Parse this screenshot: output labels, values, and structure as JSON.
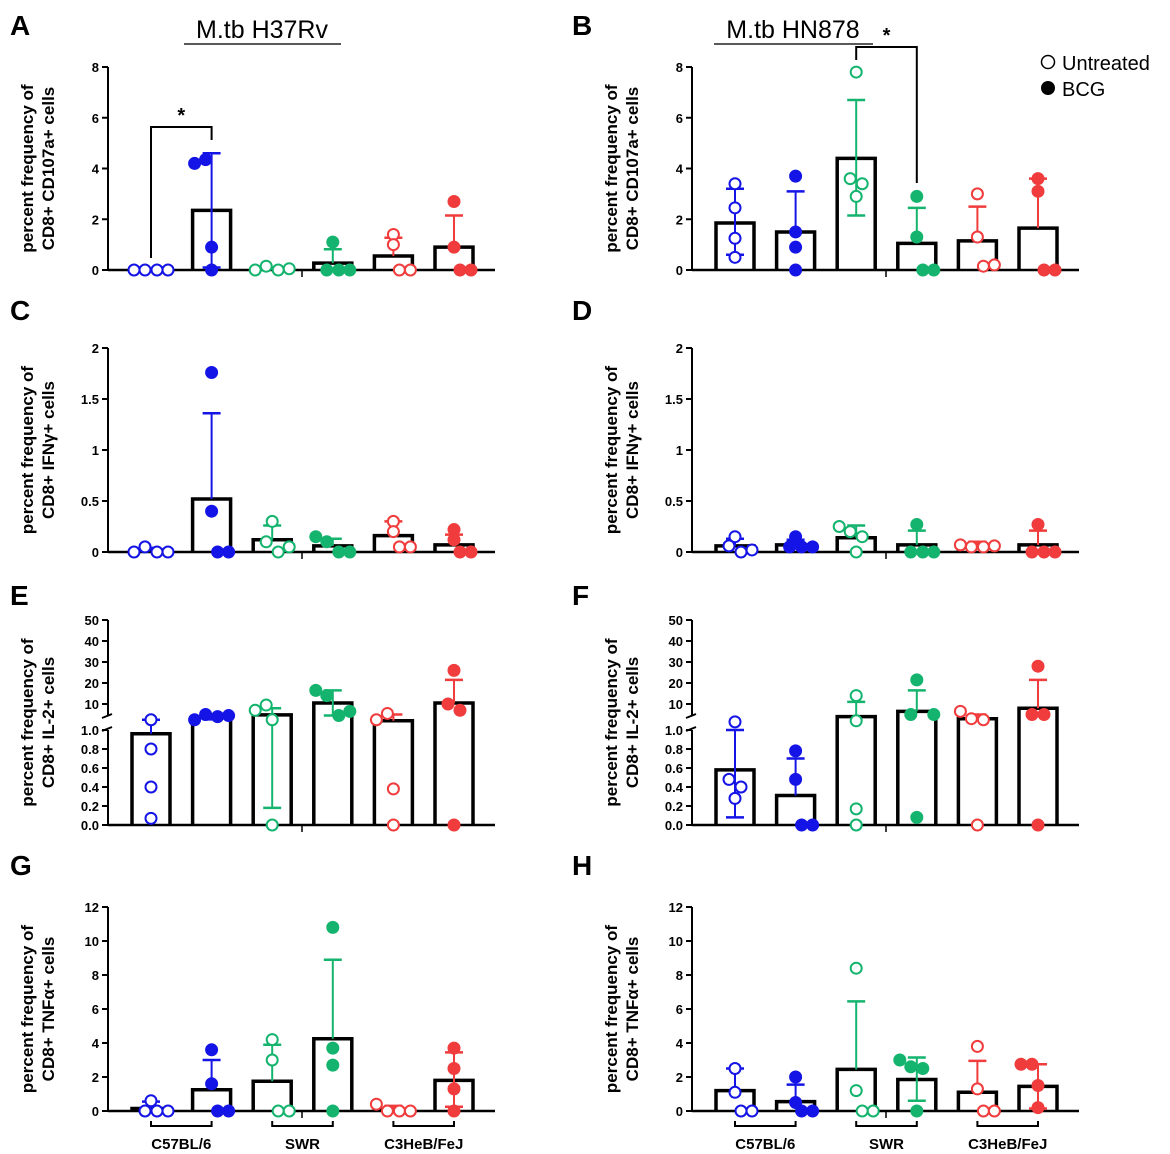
{
  "colors": {
    "C57BL/6": "#1414e6",
    "SWR": "#14b46e",
    "C3HeB/FeJ": "#f03c3c"
  },
  "titles": {
    "left": "M.tb H37Rv",
    "right": "M.tb HN878"
  },
  "legend": {
    "untreated": "Untreated",
    "bcg": "BCG"
  },
  "strains": [
    "C57BL/6",
    "SWR",
    "C3HeB/FeJ"
  ],
  "chart_data": [
    {
      "panel": "A",
      "type": "bar",
      "ylabel": [
        "percent frequency of",
        "CD8+ CD107a+ cells"
      ],
      "ylim": [
        0,
        8
      ],
      "ticks": [
        0,
        2,
        4,
        6,
        8
      ],
      "significance": {
        "groups": [
          0,
          1
        ],
        "label": "*"
      },
      "groups": [
        {
          "strain": "C57BL/6",
          "treatment": "Untreated",
          "mean": 0,
          "lo": 0,
          "hi": 0,
          "points": [
            0,
            0,
            0,
            0
          ]
        },
        {
          "strain": "C57BL/6",
          "treatment": "BCG",
          "mean": 2.35,
          "lo": 0.1,
          "hi": 4.6,
          "points": [
            4.2,
            4.35,
            0.9,
            0
          ]
        },
        {
          "strain": "SWR",
          "treatment": "Untreated",
          "mean": 0.05,
          "lo": null,
          "hi": 0.1,
          "points": [
            0,
            0.15,
            0,
            0.05
          ]
        },
        {
          "strain": "SWR",
          "treatment": "BCG",
          "mean": 0.27,
          "lo": null,
          "hi": 0.82,
          "points": [
            1.1,
            0,
            0,
            0
          ]
        },
        {
          "strain": "C3HeB/FeJ",
          "treatment": "Untreated",
          "mean": 0.55,
          "lo": null,
          "hi": 1.27,
          "points": [
            1.4,
            1.0,
            0,
            0
          ]
        },
        {
          "strain": "C3HeB/FeJ",
          "treatment": "BCG",
          "mean": 0.9,
          "lo": null,
          "hi": 2.15,
          "points": [
            2.7,
            0.9,
            0,
            0
          ]
        }
      ]
    },
    {
      "panel": "B",
      "type": "bar",
      "ylabel": [
        "percent frequency of",
        "CD8+ CD107a+ cells"
      ],
      "ylim": [
        0,
        8
      ],
      "ticks": [
        0,
        2,
        4,
        6,
        8
      ],
      "significance": {
        "groups": [
          2,
          3
        ],
        "label": "*"
      },
      "groups": [
        {
          "strain": "C57BL/6",
          "treatment": "Untreated",
          "mean": 1.85,
          "lo": 0.6,
          "hi": 3.2,
          "points": [
            3.4,
            2.45,
            1.25,
            0.5
          ]
        },
        {
          "strain": "C57BL/6",
          "treatment": "BCG",
          "mean": 1.5,
          "lo": null,
          "hi": 3.1,
          "points": [
            3.7,
            1.5,
            0.9,
            0
          ]
        },
        {
          "strain": "SWR",
          "treatment": "Untreated",
          "mean": 4.4,
          "lo": 2.15,
          "hi": 6.7,
          "points": [
            7.8,
            3.6,
            3.4,
            2.9
          ]
        },
        {
          "strain": "SWR",
          "treatment": "BCG",
          "mean": 1.05,
          "lo": null,
          "hi": 2.45,
          "points": [
            2.9,
            1.3,
            0,
            0
          ]
        },
        {
          "strain": "C3HeB/FeJ",
          "treatment": "Untreated",
          "mean": 1.15,
          "lo": null,
          "hi": 2.5,
          "points": [
            3.0,
            1.3,
            0.15,
            0.2
          ]
        },
        {
          "strain": "C3HeB/FeJ",
          "treatment": "BCG",
          "mean": 1.65,
          "lo": null,
          "hi": 3.6,
          "points": [
            3.6,
            3.1,
            0,
            0
          ]
        }
      ]
    },
    {
      "panel": "C",
      "type": "bar",
      "ylabel": [
        "percent frequency of",
        "CD8+ IFNγ+ cells"
      ],
      "ylim": [
        0,
        2
      ],
      "ticks": [
        0,
        0.5,
        1,
        1.5,
        2
      ],
      "groups": [
        {
          "strain": "C57BL/6",
          "treatment": "Untreated",
          "mean": 0.02,
          "lo": null,
          "hi": 0.04,
          "points": [
            0,
            0.05,
            0,
            0
          ]
        },
        {
          "strain": "C57BL/6",
          "treatment": "BCG",
          "mean": 0.52,
          "lo": null,
          "hi": 1.36,
          "points": [
            1.76,
            0.4,
            0,
            0
          ]
        },
        {
          "strain": "SWR",
          "treatment": "Untreated",
          "mean": 0.12,
          "lo": null,
          "hi": 0.26,
          "points": [
            0.3,
            0.1,
            0,
            0.05
          ]
        },
        {
          "strain": "SWR",
          "treatment": "BCG",
          "mean": 0.06,
          "lo": null,
          "hi": 0.13,
          "points": [
            0.15,
            0.1,
            0,
            0
          ]
        },
        {
          "strain": "C3HeB/FeJ",
          "treatment": "Untreated",
          "mean": 0.16,
          "lo": null,
          "hi": 0.3,
          "points": [
            0.3,
            0.2,
            0.05,
            0.05
          ]
        },
        {
          "strain": "C3HeB/FeJ",
          "treatment": "BCG",
          "mean": 0.07,
          "lo": null,
          "hi": 0.17,
          "points": [
            0.22,
            0.12,
            0,
            0
          ]
        }
      ]
    },
    {
      "panel": "D",
      "type": "bar",
      "ylabel": [
        "percent frequency of",
        "CD8+ IFNγ+ cells"
      ],
      "ylim": [
        0,
        2
      ],
      "ticks": [
        0,
        0.5,
        1,
        1.5,
        2
      ],
      "groups": [
        {
          "strain": "C57BL/6",
          "treatment": "Untreated",
          "mean": 0.06,
          "lo": null,
          "hi": 0.13,
          "points": [
            0.15,
            0.06,
            0,
            0.02
          ]
        },
        {
          "strain": "C57BL/6",
          "treatment": "BCG",
          "mean": 0.07,
          "lo": null,
          "hi": 0.12,
          "points": [
            0.15,
            0.05,
            0.05,
            0.05
          ]
        },
        {
          "strain": "SWR",
          "treatment": "Untreated",
          "mean": 0.14,
          "lo": null,
          "hi": 0.26,
          "points": [
            0.25,
            0.2,
            0.15,
            0
          ]
        },
        {
          "strain": "SWR",
          "treatment": "BCG",
          "mean": 0.07,
          "lo": null,
          "hi": 0.21,
          "points": [
            0.27,
            0,
            0,
            0
          ]
        },
        {
          "strain": "C3HeB/FeJ",
          "treatment": "Untreated",
          "mean": 0.06,
          "lo": null,
          "hi": 0.1,
          "points": [
            0.07,
            0.05,
            0.05,
            0.06
          ]
        },
        {
          "strain": "C3HeB/FeJ",
          "treatment": "BCG",
          "mean": 0.07,
          "lo": null,
          "hi": 0.21,
          "points": [
            0.27,
            0,
            0,
            0
          ]
        }
      ]
    },
    {
      "panel": "E",
      "type": "bar",
      "broken_axis": true,
      "ylabel": [
        "percent frequency of",
        "CD8+ IL-2+ cells"
      ],
      "ticks_low": [
        0,
        0.2,
        0.4,
        0.6,
        0.8,
        1
      ],
      "ticks_high": [
        10,
        20,
        30,
        40,
        50
      ],
      "groups": [
        {
          "strain": "C57BL/6",
          "treatment": "Untreated",
          "mean": 0.96,
          "lo": null,
          "hi": 2.5,
          "points": [
            2.5,
            0.8,
            0.4,
            0.07
          ]
        },
        {
          "strain": "C57BL/6",
          "treatment": "BCG",
          "mean": 3.5,
          "lo": 2.7,
          "hi": 4.3,
          "points": [
            2.5,
            5,
            4,
            4.5
          ]
        },
        {
          "strain": "SWR",
          "treatment": "Untreated",
          "mean": 4.8,
          "lo": 0.18,
          "hi": 8,
          "points": [
            7,
            9.5,
            2.5,
            0
          ]
        },
        {
          "strain": "SWR",
          "treatment": "BCG",
          "mean": 10.5,
          "lo": 4.5,
          "hi": 16.5,
          "points": [
            16.5,
            14,
            4.5,
            6.5
          ]
        },
        {
          "strain": "C3HeB/FeJ",
          "treatment": "Untreated",
          "mean": 2,
          "lo": null,
          "hi": 5,
          "points": [
            2.5,
            5.5,
            0.38,
            0
          ]
        },
        {
          "strain": "C3HeB/FeJ",
          "treatment": "BCG",
          "mean": 10.5,
          "lo": null,
          "hi": 21.5,
          "points": [
            26,
            10,
            7,
            0
          ]
        }
      ]
    },
    {
      "panel": "F",
      "type": "bar",
      "broken_axis": true,
      "ylabel": [
        "percent frequency of",
        "CD8+ IL-2+ cells"
      ],
      "ticks_low": [
        0,
        0.2,
        0.4,
        0.6,
        0.8,
        1
      ],
      "ticks_high": [
        10,
        20,
        30,
        40,
        50
      ],
      "groups": [
        {
          "strain": "C57BL/6",
          "treatment": "Untreated",
          "mean": 0.58,
          "lo": 0.08,
          "hi": 1.0,
          "points": [
            1.5,
            0.48,
            0.4,
            0.28
          ]
        },
        {
          "strain": "C57BL/6",
          "treatment": "BCG",
          "mean": 0.31,
          "lo": null,
          "hi": 0.7,
          "points": [
            0.78,
            0.48,
            0,
            0
          ]
        },
        {
          "strain": "SWR",
          "treatment": "Untreated",
          "mean": 4,
          "lo": null,
          "hi": 11,
          "points": [
            14,
            0.17,
            0,
            2
          ]
        },
        {
          "strain": "SWR",
          "treatment": "BCG",
          "mean": 6.5,
          "lo": null,
          "hi": 16.5,
          "points": [
            21.5,
            5,
            0.08,
            5
          ]
        },
        {
          "strain": "C3HeB/FeJ",
          "treatment": "Untreated",
          "mean": 3,
          "lo": null,
          "hi": 5,
          "points": [
            6.5,
            3,
            2.5,
            0
          ]
        },
        {
          "strain": "C3HeB/FeJ",
          "treatment": "BCG",
          "mean": 8,
          "lo": null,
          "hi": 21.5,
          "points": [
            28,
            5,
            5,
            0
          ]
        }
      ]
    },
    {
      "panel": "G",
      "type": "bar",
      "ylabel": [
        "percent frequency of",
        "CD8+ TNFα+ cells"
      ],
      "ylim": [
        0,
        12
      ],
      "ticks": [
        0,
        2,
        4,
        6,
        8,
        10,
        12
      ],
      "groups": [
        {
          "strain": "C57BL/6",
          "treatment": "Untreated",
          "mean": 0.15,
          "lo": null,
          "hi": 0.55,
          "points": [
            0.6,
            0,
            0,
            0
          ]
        },
        {
          "strain": "C57BL/6",
          "treatment": "BCG",
          "mean": 1.25,
          "lo": null,
          "hi": 3,
          "points": [
            3.6,
            1.6,
            0,
            0
          ]
        },
        {
          "strain": "SWR",
          "treatment": "Untreated",
          "mean": 1.75,
          "lo": null,
          "hi": 3.9,
          "points": [
            4.2,
            3,
            0,
            0
          ]
        },
        {
          "strain": "SWR",
          "treatment": "BCG",
          "mean": 4.25,
          "lo": null,
          "hi": 8.9,
          "points": [
            10.8,
            3.7,
            2.7,
            0
          ]
        },
        {
          "strain": "C3HeB/FeJ",
          "treatment": "Untreated",
          "mean": 0.08,
          "lo": null,
          "hi": 0.3,
          "points": [
            0.4,
            0,
            0,
            0
          ]
        },
        {
          "strain": "C3HeB/FeJ",
          "treatment": "BCG",
          "mean": 1.8,
          "lo": 0.25,
          "hi": 3.45,
          "points": [
            3.7,
            2.5,
            1.3,
            0
          ]
        }
      ]
    },
    {
      "panel": "H",
      "type": "bar",
      "ylabel": [
        "percent frequency of",
        "CD8+ TNFα+ cells"
      ],
      "ylim": [
        0,
        12
      ],
      "ticks": [
        0,
        2,
        4,
        6,
        8,
        10,
        12
      ],
      "groups": [
        {
          "strain": "C57BL/6",
          "treatment": "Untreated",
          "mean": 1.2,
          "lo": null,
          "hi": 2.5,
          "points": [
            2.5,
            1.1,
            0,
            0
          ]
        },
        {
          "strain": "C57BL/6",
          "treatment": "BCG",
          "mean": 0.55,
          "lo": null,
          "hi": 1.55,
          "points": [
            2,
            0.5,
            0,
            0
          ]
        },
        {
          "strain": "SWR",
          "treatment": "Untreated",
          "mean": 2.45,
          "lo": null,
          "hi": 6.45,
          "points": [
            8.4,
            1.2,
            0,
            0
          ]
        },
        {
          "strain": "SWR",
          "treatment": "BCG",
          "mean": 1.85,
          "lo": 0.6,
          "hi": 3.15,
          "points": [
            3,
            2.6,
            2.5,
            0
          ]
        },
        {
          "strain": "C3HeB/FeJ",
          "treatment": "Untreated",
          "mean": 1.1,
          "lo": null,
          "hi": 2.95,
          "points": [
            3.8,
            1.3,
            0,
            0
          ]
        },
        {
          "strain": "C3HeB/FeJ",
          "treatment": "BCG",
          "mean": 1.45,
          "lo": 0.15,
          "hi": 2.75,
          "points": [
            2.75,
            2.75,
            1.5,
            0.2
          ]
        }
      ]
    }
  ]
}
